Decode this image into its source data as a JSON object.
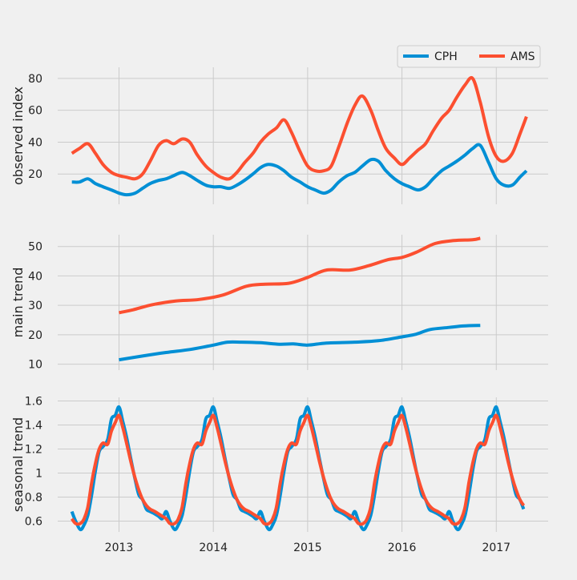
{
  "legend": {
    "placement": "top-right",
    "items": [
      {
        "name": "CPH",
        "color": "#008fd5"
      },
      {
        "name": "AMS",
        "color": "#fc4f30"
      }
    ]
  },
  "x_ticks": [
    "2013",
    "2014",
    "2015",
    "2016",
    "2017"
  ],
  "chart_data": [
    {
      "type": "line",
      "ylabel": "observed index",
      "ylim": [
        1,
        87
      ],
      "yticks": [
        20,
        40,
        60,
        80
      ],
      "xlim": [
        2012.35,
        2017.55
      ],
      "grid": true,
      "series": [
        {
          "name": "CPH",
          "color": "#008fd5",
          "x": [
            2012.5,
            2012.58,
            2012.67,
            2012.75,
            2012.83,
            2012.92,
            2013.0,
            2013.08,
            2013.17,
            2013.25,
            2013.33,
            2013.42,
            2013.5,
            2013.58,
            2013.67,
            2013.75,
            2013.83,
            2013.92,
            2014.0,
            2014.08,
            2014.17,
            2014.25,
            2014.33,
            2014.42,
            2014.5,
            2014.58,
            2014.67,
            2014.75,
            2014.83,
            2014.92,
            2015.0,
            2015.08,
            2015.17,
            2015.25,
            2015.33,
            2015.42,
            2015.5,
            2015.58,
            2015.67,
            2015.75,
            2015.83,
            2015.92,
            2016.0,
            2016.08,
            2016.17,
            2016.25,
            2016.33,
            2016.42,
            2016.5,
            2016.58,
            2016.67,
            2016.75,
            2016.83,
            2016.92,
            2017.0,
            2017.08,
            2017.17,
            2017.25,
            2017.32
          ],
          "values": [
            15,
            15,
            17,
            14,
            12,
            10,
            8,
            7,
            8,
            11,
            14,
            16,
            17,
            19,
            21,
            19,
            16,
            13,
            12,
            12,
            11,
            13,
            16,
            20,
            24,
            26,
            25,
            22,
            18,
            15,
            12,
            10,
            8,
            10,
            15,
            19,
            21,
            25,
            29,
            28,
            22,
            17,
            14,
            12,
            10,
            12,
            17,
            22,
            25,
            28,
            32,
            36,
            38,
            27,
            17,
            13,
            13,
            18,
            22
          ]
        },
        {
          "name": "AMS",
          "color": "#fc4f30",
          "x": [
            2012.5,
            2012.58,
            2012.67,
            2012.75,
            2012.83,
            2012.92,
            2013.0,
            2013.08,
            2013.17,
            2013.25,
            2013.33,
            2013.42,
            2013.5,
            2013.58,
            2013.67,
            2013.75,
            2013.83,
            2013.92,
            2014.0,
            2014.08,
            2014.17,
            2014.25,
            2014.33,
            2014.42,
            2014.5,
            2014.58,
            2014.67,
            2014.75,
            2014.83,
            2014.92,
            2015.0,
            2015.08,
            2015.17,
            2015.25,
            2015.33,
            2015.42,
            2015.5,
            2015.58,
            2015.67,
            2015.75,
            2015.83,
            2015.92,
            2016.0,
            2016.08,
            2016.17,
            2016.25,
            2016.33,
            2016.42,
            2016.5,
            2016.58,
            2016.67,
            2016.75,
            2016.83,
            2016.92,
            2017.0,
            2017.08,
            2017.17,
            2017.25,
            2017.32
          ],
          "values": [
            33,
            36,
            39,
            33,
            26,
            21,
            19,
            18,
            17,
            20,
            28,
            38,
            41,
            39,
            42,
            40,
            32,
            25,
            21,
            18,
            17,
            21,
            27,
            33,
            40,
            45,
            49,
            54,
            46,
            34,
            25,
            22,
            22,
            25,
            37,
            52,
            63,
            69,
            60,
            47,
            36,
            30,
            26,
            30,
            35,
            39,
            47,
            55,
            60,
            68,
            76,
            80,
            65,
            43,
            31,
            28,
            33,
            45,
            56
          ]
        }
      ]
    },
    {
      "type": "line",
      "ylabel": "main trend",
      "ylim": [
        8,
        54
      ],
      "yticks": [
        10,
        20,
        30,
        40,
        50
      ],
      "xlim": [
        2012.35,
        2017.55
      ],
      "grid": true,
      "series": [
        {
          "name": "CPH",
          "color": "#008fd5",
          "x": [
            2013.0,
            2013.25,
            2013.5,
            2013.75,
            2014.0,
            2014.15,
            2014.3,
            2014.5,
            2014.7,
            2014.85,
            2015.0,
            2015.2,
            2015.5,
            2015.75,
            2016.0,
            2016.15,
            2016.3,
            2016.5,
            2016.65,
            2016.83
          ],
          "values": [
            11.5,
            12.8,
            14.0,
            15.0,
            16.5,
            17.5,
            17.5,
            17.3,
            16.8,
            16.9,
            16.5,
            17.2,
            17.5,
            18.0,
            19.3,
            20.2,
            21.8,
            22.5,
            23.0,
            23.2
          ]
        },
        {
          "name": "AMS",
          "color": "#fc4f30",
          "x": [
            2013.0,
            2013.15,
            2013.35,
            2013.6,
            2013.85,
            2014.1,
            2014.35,
            2014.55,
            2014.8,
            2015.0,
            2015.2,
            2015.45,
            2015.65,
            2015.85,
            2016.0,
            2016.15,
            2016.35,
            2016.55,
            2016.75,
            2016.83
          ],
          "values": [
            27.5,
            28.5,
            30.2,
            31.5,
            32.0,
            33.5,
            36.5,
            37.2,
            37.5,
            39.5,
            42.0,
            42.0,
            43.5,
            45.5,
            46.3,
            48.0,
            51.0,
            52.0,
            52.3,
            52.8
          ]
        }
      ]
    },
    {
      "type": "line",
      "ylabel": "seasonal trend",
      "ylim": [
        0.51,
        1.63
      ],
      "yticks": [
        0.6,
        0.8,
        1.0,
        1.2,
        1.4,
        1.6
      ],
      "xlim": [
        2012.35,
        2017.55
      ],
      "grid": true,
      "pattern_note": "annual cycle repeated each year",
      "series": [
        {
          "name": "CPH",
          "color": "#008fd5",
          "cycle_offsets": [
            0.0,
            0.04,
            0.09,
            0.13,
            0.17,
            0.21,
            0.25,
            0.29,
            0.33,
            0.38,
            0.42,
            0.46,
            0.5,
            0.54,
            0.58,
            0.63,
            0.67,
            0.71,
            0.75,
            0.79,
            0.83,
            0.88,
            0.92,
            0.96
          ],
          "cycle_values": [
            0.68,
            0.6,
            0.53,
            0.57,
            0.65,
            0.82,
            1.02,
            1.18,
            1.22,
            1.28,
            1.45,
            1.48,
            1.55,
            1.43,
            1.3,
            1.1,
            0.95,
            0.82,
            0.78,
            0.7,
            0.68,
            0.66,
            0.64,
            0.62
          ],
          "x_start": 2012.5,
          "x_end": 2017.32
        },
        {
          "name": "AMS",
          "color": "#fc4f30",
          "cycle_offsets": [
            0.0,
            0.04,
            0.09,
            0.13,
            0.17,
            0.21,
            0.25,
            0.29,
            0.33,
            0.38,
            0.42,
            0.46,
            0.5,
            0.54,
            0.58,
            0.63,
            0.67,
            0.71,
            0.75,
            0.79,
            0.83,
            0.88,
            0.92,
            0.96
          ],
          "cycle_values": [
            0.62,
            0.58,
            0.58,
            0.62,
            0.72,
            0.92,
            1.08,
            1.2,
            1.25,
            1.24,
            1.35,
            1.42,
            1.48,
            1.38,
            1.25,
            1.08,
            0.96,
            0.86,
            0.78,
            0.73,
            0.7,
            0.68,
            0.66,
            0.64
          ],
          "x_start": 2012.5,
          "x_end": 2017.32
        }
      ]
    }
  ]
}
